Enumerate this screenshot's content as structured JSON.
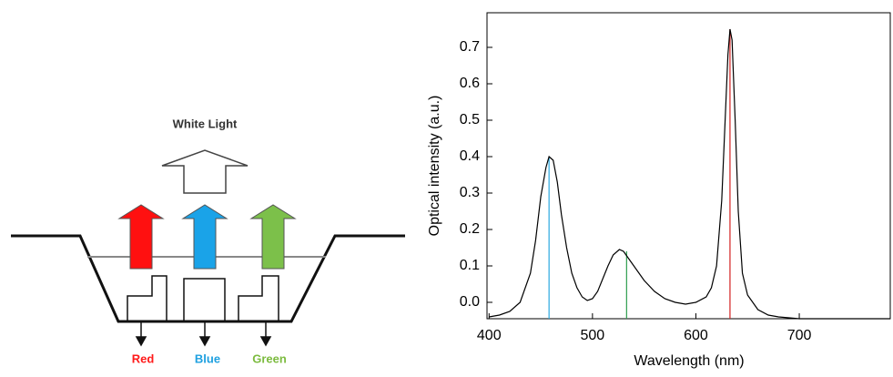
{
  "diagram": {
    "title": "White Light",
    "labels": [
      "Red",
      "Blue",
      "Green"
    ]
  },
  "chart_data": {
    "type": "line",
    "x_label": "Wavelength (nm)",
    "y_label": "Optical intensity (a.u.)",
    "x": [
      400,
      410,
      420,
      430,
      440,
      445,
      450,
      455,
      458,
      462,
      466,
      470,
      475,
      480,
      485,
      490,
      495,
      500,
      505,
      510,
      515,
      520,
      526,
      530,
      535,
      540,
      550,
      560,
      570,
      580,
      590,
      600,
      610,
      615,
      620,
      625,
      628,
      631,
      633,
      635,
      638,
      641,
      645,
      650,
      660,
      670,
      680,
      700,
      720,
      788
    ],
    "series": [
      {
        "color": "#000000",
        "values": [
          -0.04,
          -0.035,
          -0.025,
          0.0,
          0.08,
          0.17,
          0.29,
          0.37,
          0.4,
          0.39,
          0.33,
          0.24,
          0.15,
          0.08,
          0.04,
          0.015,
          0.005,
          0.01,
          0.03,
          0.065,
          0.1,
          0.13,
          0.145,
          0.14,
          0.12,
          0.1,
          0.06,
          0.03,
          0.01,
          0.0,
          -0.005,
          0.0,
          0.015,
          0.04,
          0.1,
          0.28,
          0.48,
          0.68,
          0.75,
          0.72,
          0.5,
          0.25,
          0.08,
          0.02,
          -0.02,
          -0.035,
          -0.04,
          -0.045,
          -0.045,
          -0.045
        ]
      }
    ],
    "peak_lines": [
      {
        "x": 458,
        "value": 0.4,
        "color": "#29a8e0"
      },
      {
        "x": 533,
        "value": 0.14,
        "color": "#2e9e4f"
      },
      {
        "x": 633,
        "value": 0.75,
        "color": "#d42020"
      }
    ],
    "xlim": [
      398,
      788
    ],
    "ylim": [
      -0.045,
      0.795
    ],
    "xticks": [
      400,
      500,
      600,
      700
    ],
    "yticks": [
      {
        "value": 0,
        "label": "0.0"
      },
      0.1,
      0.2,
      0.3,
      0.4,
      0.5,
      0.6,
      0.7
    ]
  }
}
